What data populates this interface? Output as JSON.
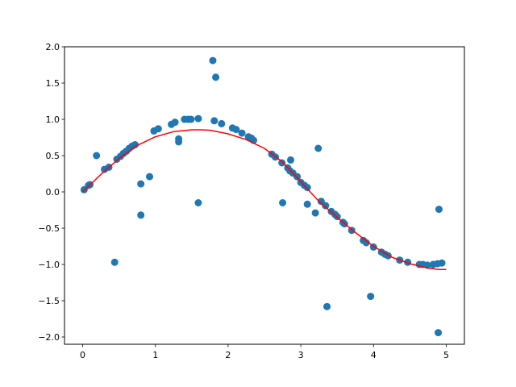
{
  "chart_data": {
    "type": "scatter",
    "title": "",
    "xlabel": "",
    "ylabel": "",
    "xlim": [
      -0.25,
      5.25
    ],
    "ylim": [
      -2.1,
      2.0
    ],
    "grid": false,
    "legend": "none",
    "x_ticks": [
      {
        "value": 0,
        "label": "0"
      },
      {
        "value": 1,
        "label": "1"
      },
      {
        "value": 2,
        "label": "2"
      },
      {
        "value": 3,
        "label": "3"
      },
      {
        "value": 4,
        "label": "4"
      },
      {
        "value": 5,
        "label": "5"
      }
    ],
    "y_ticks": [
      {
        "value": -2.0,
        "label": "−2.0"
      },
      {
        "value": -1.5,
        "label": "−1.5"
      },
      {
        "value": -1.0,
        "label": "−1.0"
      },
      {
        "value": -0.5,
        "label": "−0.5"
      },
      {
        "value": 0.0,
        "label": "0.0"
      },
      {
        "value": 0.5,
        "label": "0.5"
      },
      {
        "value": 1.0,
        "label": "1.0"
      },
      {
        "value": 1.5,
        "label": "1.5"
      },
      {
        "value": 2.0,
        "label": "2.0"
      }
    ],
    "scatter": {
      "color": "#1f77b4",
      "points": [
        [
          0.02,
          0.03
        ],
        [
          0.08,
          0.09
        ],
        [
          0.1,
          0.1
        ],
        [
          0.19,
          0.5
        ],
        [
          0.3,
          0.31
        ],
        [
          0.36,
          0.34
        ],
        [
          0.44,
          -0.97
        ],
        [
          0.47,
          0.45
        ],
        [
          0.52,
          0.49
        ],
        [
          0.56,
          0.53
        ],
        [
          0.6,
          0.56
        ],
        [
          0.64,
          0.6
        ],
        [
          0.68,
          0.63
        ],
        [
          0.72,
          0.65
        ],
        [
          0.8,
          0.11
        ],
        [
          0.8,
          -0.32
        ],
        [
          0.92,
          0.21
        ],
        [
          0.98,
          0.84
        ],
        [
          1.04,
          0.87
        ],
        [
          1.22,
          0.93
        ],
        [
          1.27,
          0.96
        ],
        [
          1.32,
          0.73
        ],
        [
          1.32,
          0.69
        ],
        [
          1.4,
          1.0
        ],
        [
          1.45,
          1.0
        ],
        [
          1.49,
          1.0
        ],
        [
          1.59,
          1.01
        ],
        [
          1.59,
          -0.15
        ],
        [
          1.79,
          1.81
        ],
        [
          1.81,
          0.98
        ],
        [
          1.83,
          1.58
        ],
        [
          1.91,
          0.94
        ],
        [
          2.06,
          0.88
        ],
        [
          2.11,
          0.86
        ],
        [
          2.19,
          0.81
        ],
        [
          2.28,
          0.76
        ],
        [
          2.32,
          0.74
        ],
        [
          2.35,
          0.71
        ],
        [
          2.6,
          0.52
        ],
        [
          2.65,
          0.48
        ],
        [
          2.74,
          0.4
        ],
        [
          2.75,
          -0.15
        ],
        [
          2.82,
          0.33
        ],
        [
          2.85,
          0.29
        ],
        [
          2.86,
          0.44
        ],
        [
          2.89,
          0.26
        ],
        [
          2.95,
          0.21
        ],
        [
          3.0,
          0.13
        ],
        [
          3.05,
          0.09
        ],
        [
          3.09,
          0.06
        ],
        [
          3.09,
          -0.17
        ],
        [
          3.2,
          -0.29
        ],
        [
          3.24,
          0.6
        ],
        [
          3.28,
          -0.13
        ],
        [
          3.34,
          -0.19
        ],
        [
          3.36,
          -1.58
        ],
        [
          3.42,
          -0.27
        ],
        [
          3.47,
          -0.31
        ],
        [
          3.5,
          -0.34
        ],
        [
          3.58,
          -0.42
        ],
        [
          3.6,
          -0.44
        ],
        [
          3.7,
          -0.53
        ],
        [
          3.86,
          -0.67
        ],
        [
          3.9,
          -0.7
        ],
        [
          3.96,
          -1.44
        ],
        [
          4.0,
          -0.76
        ],
        [
          4.11,
          -0.83
        ],
        [
          4.16,
          -0.86
        ],
        [
          4.2,
          -0.88
        ],
        [
          4.36,
          -0.94
        ],
        [
          4.47,
          -0.97
        ],
        [
          4.63,
          -1.0
        ],
        [
          4.68,
          -1.0
        ],
        [
          4.74,
          -1.01
        ],
        [
          4.82,
          -1.0
        ],
        [
          4.88,
          -0.99
        ],
        [
          4.89,
          -1.94
        ],
        [
          4.9,
          -0.24
        ],
        [
          4.94,
          -0.98
        ]
      ]
    },
    "fit_line": {
      "color": "#ff0000",
      "points": [
        [
          0.0,
          0.0
        ],
        [
          0.25,
          0.24
        ],
        [
          0.5,
          0.46
        ],
        [
          0.75,
          0.64
        ],
        [
          1.0,
          0.76
        ],
        [
          1.25,
          0.83
        ],
        [
          1.5,
          0.855
        ],
        [
          1.6,
          0.856
        ],
        [
          1.75,
          0.85
        ],
        [
          2.0,
          0.8
        ],
        [
          2.25,
          0.72
        ],
        [
          2.5,
          0.6
        ],
        [
          2.75,
          0.41
        ],
        [
          3.0,
          0.14
        ],
        [
          3.25,
          -0.13
        ],
        [
          3.5,
          -0.35
        ],
        [
          3.75,
          -0.56
        ],
        [
          4.0,
          -0.75
        ],
        [
          4.25,
          -0.9
        ],
        [
          4.5,
          -0.99
        ],
        [
          4.75,
          -1.05
        ],
        [
          4.9,
          -1.07
        ],
        [
          5.0,
          -1.07
        ]
      ]
    }
  }
}
